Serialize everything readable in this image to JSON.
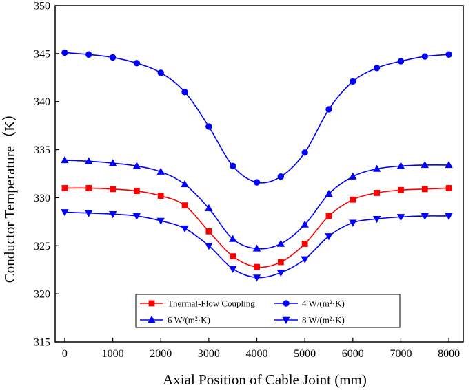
{
  "chart_data": {
    "type": "line",
    "title": "",
    "xlabel": "Axial Position of Cable Joint (mm)",
    "ylabel": "Conductor Temperature（K）",
    "xlim": [
      -200,
      8300
    ],
    "ylim": [
      315,
      350
    ],
    "xticks": [
      0,
      1000,
      2000,
      3000,
      4000,
      5000,
      6000,
      7000,
      8000
    ],
    "yticks": [
      315,
      320,
      325,
      330,
      335,
      340,
      345,
      350
    ],
    "x": [
      0,
      500,
      1000,
      1500,
      2000,
      2500,
      3000,
      3500,
      4000,
      4500,
      5000,
      5500,
      6000,
      6500,
      7000,
      7500,
      8000
    ],
    "legend_position": "bottom-center",
    "series": [
      {
        "name": "Thermal-Flow Coupling",
        "color": "#ff0000",
        "marker": "square",
        "values": [
          331.0,
          331.0,
          330.9,
          330.7,
          330.2,
          329.2,
          326.5,
          323.9,
          322.8,
          323.3,
          325.2,
          328.1,
          329.8,
          330.5,
          330.8,
          330.9,
          331.0
        ]
      },
      {
        "name": "4 W/(m²·K)",
        "color": "#0000ff",
        "marker": "circle",
        "values": [
          345.1,
          344.9,
          344.6,
          344.0,
          343.0,
          341.0,
          337.4,
          333.3,
          331.6,
          332.2,
          334.7,
          339.2,
          342.1,
          343.5,
          344.2,
          344.7,
          344.9
        ]
      },
      {
        "name": "6 W/(m²·K)",
        "color": "#0000ff",
        "marker": "triangle-up",
        "values": [
          333.9,
          333.8,
          333.6,
          333.3,
          332.7,
          331.4,
          328.9,
          325.7,
          324.7,
          325.2,
          327.2,
          330.4,
          332.2,
          333.0,
          333.3,
          333.4,
          333.4
        ]
      },
      {
        "name": "8 W/(m²·K)",
        "color": "#0000ff",
        "marker": "triangle-down",
        "values": [
          328.5,
          328.4,
          328.3,
          328.1,
          327.6,
          326.8,
          325.0,
          322.6,
          321.7,
          322.2,
          323.6,
          326.0,
          327.4,
          327.8,
          328.0,
          328.1,
          328.1
        ]
      }
    ]
  }
}
